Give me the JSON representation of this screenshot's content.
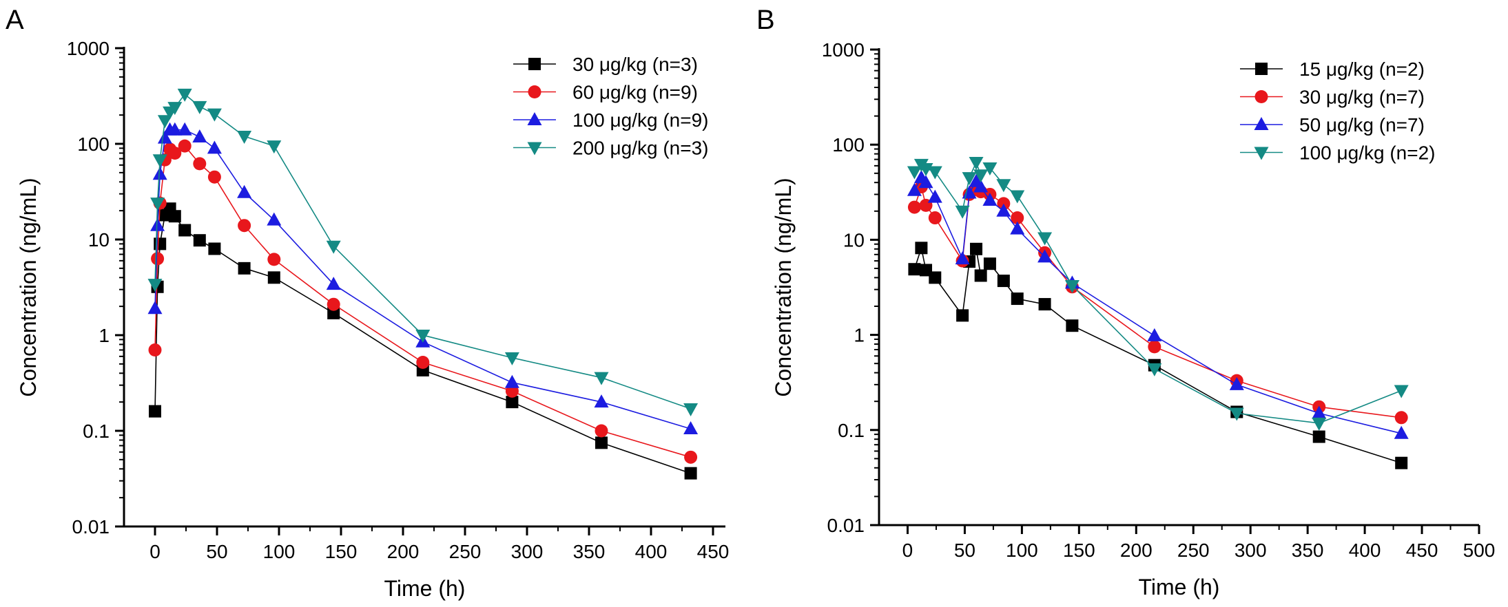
{
  "chart_data": [
    {
      "panel_label": "A",
      "type": "line",
      "xlabel": "Time (h)",
      "ylabel": "Concentration (ng/mL)",
      "xlim": [
        -25,
        460
      ],
      "ylim": [
        0.01,
        1000
      ],
      "yscale": "log",
      "xticks": [
        0,
        50,
        100,
        150,
        200,
        250,
        300,
        350,
        400,
        450
      ],
      "yticks": [
        0.01,
        0.1,
        1,
        10,
        100,
        1000
      ],
      "ytick_labels": [
        "0.01",
        "0.1",
        "1",
        "10",
        "100",
        "1000"
      ],
      "grid": false,
      "legend_position": "top-right",
      "series": [
        {
          "name": "30 μg/kg (n=3)",
          "color": "#000000",
          "marker": "square",
          "x": [
            0,
            2,
            4,
            8,
            12,
            16,
            24,
            36,
            48,
            72,
            96,
            144,
            216,
            288,
            360,
            432
          ],
          "y": [
            0.16,
            3.2,
            9.0,
            18,
            21,
            17.5,
            12.5,
            9.8,
            8.0,
            5.0,
            4.0,
            1.7,
            0.43,
            0.2,
            0.075,
            0.036
          ]
        },
        {
          "name": "60 μg/kg (n=9)",
          "color": "#e8171c",
          "marker": "circle",
          "x": [
            0,
            2,
            4,
            8,
            12,
            16,
            24,
            36,
            48,
            72,
            96,
            144,
            216,
            288,
            360,
            432
          ],
          "y": [
            0.7,
            6.3,
            24,
            68,
            88,
            80,
            95,
            62,
            45,
            14,
            6.2,
            2.1,
            0.52,
            0.26,
            0.1,
            0.053
          ]
        },
        {
          "name": "100 μg/kg (n=9)",
          "color": "#1c1ce0",
          "marker": "triangle-up",
          "x": [
            0,
            2,
            4,
            8,
            12,
            16,
            24,
            36,
            48,
            72,
            96,
            144,
            216,
            288,
            360,
            432
          ],
          "y": [
            1.9,
            14,
            48,
            115,
            140,
            140,
            140,
            118,
            90,
            31,
            16,
            3.4,
            0.85,
            0.32,
            0.2,
            0.105
          ]
        },
        {
          "name": "200 μg/kg (n=3)",
          "color": "#148a84",
          "marker": "triangle-down",
          "x": [
            0,
            2,
            4,
            8,
            12,
            16,
            24,
            36,
            48,
            72,
            96,
            144,
            216,
            288,
            360,
            432
          ],
          "y": [
            3.4,
            24,
            68,
            175,
            215,
            240,
            330,
            245,
            205,
            120,
            95,
            8.5,
            1.0,
            0.58,
            0.36,
            0.17
          ]
        }
      ]
    },
    {
      "panel_label": "B",
      "type": "line",
      "xlabel": "Time (h)",
      "ylabel": "Concentration (ng/mL)",
      "xlim": [
        -25,
        500
      ],
      "ylim": [
        0.01,
        1000
      ],
      "yscale": "log",
      "xticks": [
        0,
        50,
        100,
        150,
        200,
        250,
        300,
        350,
        400,
        450,
        500
      ],
      "yticks": [
        0.01,
        0.1,
        1,
        10,
        100,
        1000
      ],
      "ytick_labels": [
        "0.01",
        "0.1",
        "1",
        "10",
        "100",
        "1000"
      ],
      "grid": false,
      "legend_position": "top-right",
      "series": [
        {
          "name": "15 μg/kg (n=2)",
          "color": "#000000",
          "marker": "square",
          "x": [
            6,
            12,
            16,
            24,
            48,
            54,
            60,
            64,
            72,
            84,
            96,
            120,
            144,
            216,
            288,
            360,
            432
          ],
          "y": [
            4.9,
            8.2,
            4.8,
            4.0,
            1.6,
            5.9,
            8.0,
            4.2,
            5.6,
            3.7,
            2.4,
            2.1,
            1.25,
            0.48,
            0.155,
            0.085,
            0.045
          ]
        },
        {
          "name": "30 μg/kg (n=7)",
          "color": "#e8171c",
          "marker": "circle",
          "x": [
            6,
            12,
            16,
            24,
            48,
            54,
            60,
            64,
            72,
            84,
            96,
            120,
            144,
            216,
            288,
            360,
            432
          ],
          "y": [
            22,
            36,
            23,
            17,
            6.0,
            30,
            35,
            32,
            30,
            24,
            17,
            7.3,
            3.2,
            0.75,
            0.33,
            0.175,
            0.135
          ]
        },
        {
          "name": "50 μg/kg (n=7)",
          "color": "#1c1ce0",
          "marker": "triangle-up",
          "x": [
            6,
            12,
            16,
            24,
            48,
            54,
            60,
            64,
            72,
            84,
            96,
            120,
            144,
            216,
            288,
            360,
            432
          ],
          "y": [
            33,
            45,
            40,
            28,
            6.3,
            31,
            41,
            36,
            26,
            20,
            13,
            6.6,
            3.5,
            0.98,
            0.3,
            0.15,
            0.092
          ]
        },
        {
          "name": "100 μg/kg (n=2)",
          "color": "#148a84",
          "marker": "triangle-down",
          "x": [
            6,
            12,
            16,
            24,
            48,
            54,
            60,
            64,
            72,
            84,
            96,
            120,
            144,
            216,
            288,
            360,
            432
          ],
          "y": [
            52,
            62,
            56,
            52,
            20,
            45,
            65,
            48,
            57,
            38,
            29,
            10.5,
            3.3,
            0.44,
            0.15,
            0.118,
            0.26
          ]
        }
      ]
    }
  ]
}
